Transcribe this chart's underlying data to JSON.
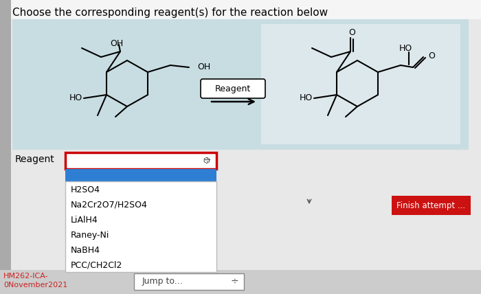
{
  "title": "Choose the corresponding reagent(s) for the reaction below",
  "page_bg": "#e8e8e8",
  "reaction_box_bg": "#c8dde2",
  "white_box_bg": "#e8eef0",
  "dropdown_label": "Reagent",
  "dropdown_items": [
    "H2SO4",
    "Na2Cr2O7/H2SO4",
    "LiAlH4",
    "Raney-Ni",
    "NaBH4",
    "PCC/CH2Cl2"
  ],
  "dropdown_highlight_color": "#2e7fd4",
  "dropdown_box_border": "#cc0000",
  "finish_button_text": "Finish attempt ...",
  "finish_button_color": "#cc1111",
  "finish_button_text_color": "#ffffff",
  "bottom_left_text1": "HM262-ICA-",
  "bottom_left_text2": "0November2021",
  "jump_to_text": "Jump to...",
  "reagent_arrow_text": "Reagent",
  "title_fontsize": 11,
  "label_fontsize": 9,
  "sidebar_color": "#aaaaaa",
  "bottom_bar_color": "#cccccc",
  "cursor_color": "#555555"
}
